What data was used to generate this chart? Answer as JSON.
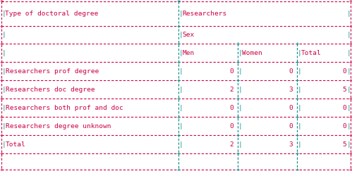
{
  "title_col1": "Type of doctoral degree",
  "title_col2": "Researchers",
  "subtitle_sex": "Sex",
  "col_headers": [
    "Men",
    "Women",
    "Total"
  ],
  "rows": [
    [
      "Researchers prof degree",
      "0",
      "0",
      "0"
    ],
    [
      "Researchers doc degree",
      "2",
      "3",
      "5"
    ],
    [
      "Researchers both prof and doc",
      "0",
      "0",
      "0"
    ],
    [
      "Researchers degree unknown",
      "0",
      "0",
      "0"
    ],
    [
      "Total",
      "2",
      "3",
      "5"
    ]
  ],
  "border_color": "#CC0044",
  "line_color": "#008888",
  "text_color": "#CC0044",
  "bg_color": "#FFFFFF",
  "font_size": 6.8,
  "fig_width": 4.99,
  "fig_height": 2.43,
  "dpi": 100
}
